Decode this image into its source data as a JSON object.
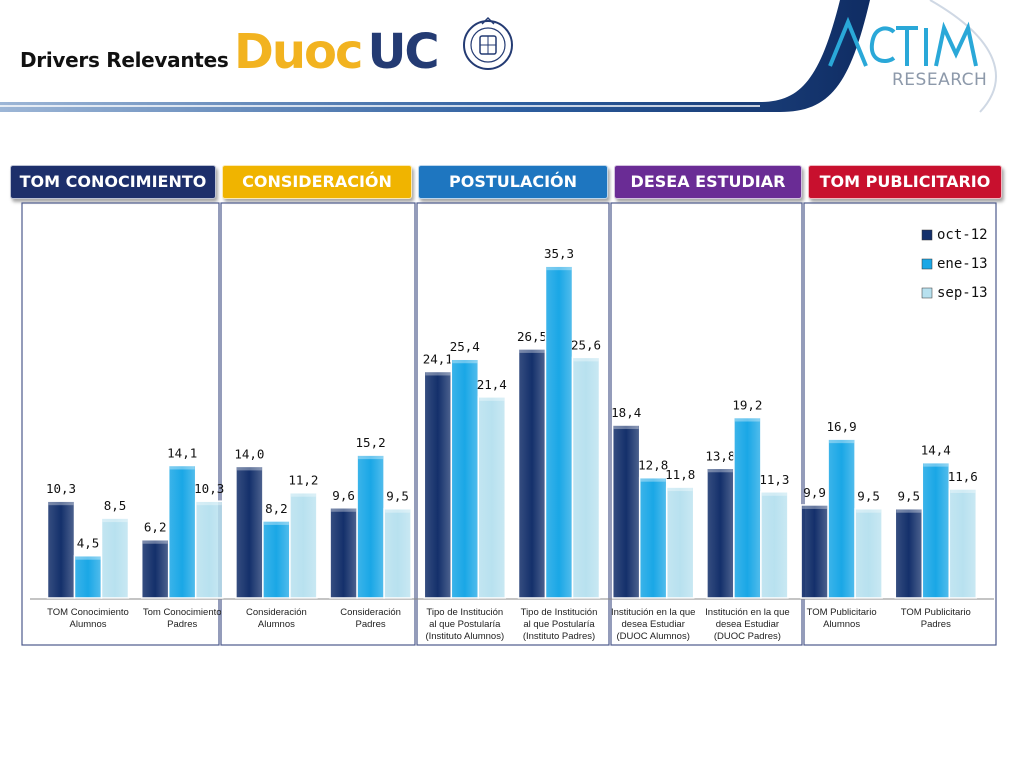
{
  "header": {
    "title": "Drivers Relevantes",
    "logo_duoc_part1": "Duoc",
    "logo_duoc_part2": "UC",
    "logo_actim_mark": "ACTIM",
    "logo_actim_sub": "RESEARCH",
    "colors": {
      "duoc_yellow": "#f2b320",
      "duoc_blue": "#243b73",
      "actim_blue": "#2aa8d8",
      "actim_grey": "#8d99aa"
    }
  },
  "tabs": [
    {
      "label": "TOM CONOCIMIENTO",
      "color": "#1d2f6b"
    },
    {
      "label": "CONSIDERACIÓN",
      "color": "#f0b400"
    },
    {
      "label": "POSTULACIÓN",
      "color": "#1e76c0"
    },
    {
      "label": "DESEA ESTUDIAR",
      "color": "#6a2c95"
    },
    {
      "label": "TOM PUBLICITARIO",
      "color": "#c8102e"
    }
  ],
  "chart_data": {
    "type": "bar",
    "categories": [
      [
        "TOM  Conocimiento",
        "Alumnos"
      ],
      [
        "Tom Conocimiento",
        "Padres"
      ],
      [
        "Consideración",
        "Alumnos"
      ],
      [
        "Consideración",
        "Padres"
      ],
      [
        "Tipo de Institución",
        "al que Postularía",
        "(Instituto Alumnos)"
      ],
      [
        "Tipo de Institución",
        "al que Postularía",
        "(Instituto Padres)"
      ],
      [
        "Institución en la que",
        "desea Estudiar",
        "(DUOC Alumnos)"
      ],
      [
        "Institución en la que",
        "desea Estudiar",
        "(DUOC Padres)"
      ],
      [
        "TOM Publicitario",
        "Alumnos"
      ],
      [
        "TOM Publicitario",
        "Padres"
      ]
    ],
    "series": [
      {
        "name": "oct-12",
        "color": "#14306b",
        "values": [
          10.3,
          6.2,
          14.0,
          9.6,
          24.1,
          26.5,
          18.4,
          13.8,
          9.9,
          9.5
        ],
        "labels": [
          "10,3",
          "6,2",
          "14,0",
          "9,6",
          "24,1",
          "26,5",
          "18,4",
          "13,8",
          "9,9",
          "9,5"
        ]
      },
      {
        "name": "ene-13",
        "color": "#1aa7e6",
        "values": [
          4.5,
          14.1,
          8.2,
          15.2,
          25.4,
          35.3,
          12.8,
          19.2,
          16.9,
          14.4
        ],
        "labels": [
          "4,5",
          "14,1",
          "8,2",
          "15,2",
          "25,4",
          "35,3",
          "12,8",
          "19,2",
          "16,9",
          "14,4"
        ]
      },
      {
        "name": "sep-13",
        "color": "#b8e1ef",
        "values": [
          8.5,
          10.3,
          11.2,
          9.5,
          21.4,
          25.6,
          11.8,
          11.3,
          9.5,
          11.6
        ],
        "labels": [
          "8,5",
          "10,3",
          "11,2",
          "9,5",
          "21,4",
          "25,6",
          "11,8",
          "11,3",
          "9,5",
          "11,6"
        ]
      }
    ],
    "ylim": [
      0,
      40
    ],
    "grid": false,
    "legend": "top-right"
  }
}
